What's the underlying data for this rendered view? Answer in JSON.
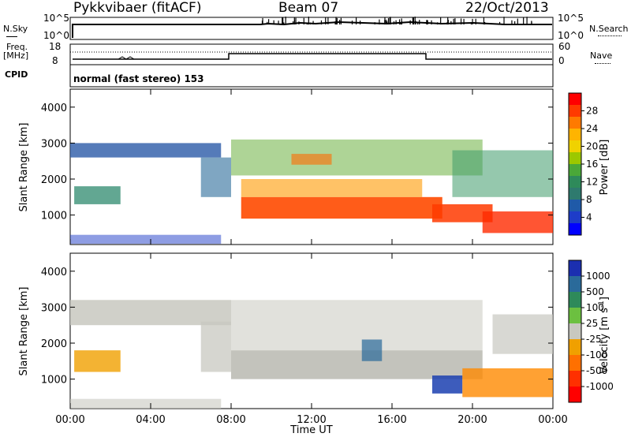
{
  "header": {
    "radar": "Pykkvibaer (fitACF)",
    "beam": "Beam 07",
    "date": "22/Oct/2013"
  },
  "params": {
    "nsky_label": "N.Sky",
    "nsky_ticks": [
      "10^5",
      "10^0"
    ],
    "nsearch_label": "N.Search",
    "nsearch_ticks": [
      "10^5",
      "10^0"
    ],
    "freq_label": "Freq.",
    "freq_unit": "[MHz]",
    "freq_ticks": [
      "18",
      "8"
    ],
    "nave_label": "Nave",
    "nave_ticks": [
      "60",
      "0"
    ],
    "cpid_label": "CPID",
    "cpid_text": "normal (fast stereo) 153"
  },
  "chart_data": [
    {
      "type": "heatmap",
      "name": "power",
      "ylabel": "Slant Range [km]",
      "yticks": [
        "4000",
        "3000",
        "2000",
        "1000"
      ],
      "ylim": [
        180,
        4500
      ],
      "xlim_hours": [
        0,
        24
      ],
      "colorbar_label": "Power [dB]",
      "colorbar_ticks": [
        "28",
        "24",
        "20",
        "16",
        "12",
        "8",
        "4"
      ],
      "colorbar_colors": [
        "#ff0000",
        "#ff3a00",
        "#ff7a00",
        "#ffb400",
        "#f0d200",
        "#9cc800",
        "#4aa838",
        "#2e8a5a",
        "#2e7a6e",
        "#1f5aa8",
        "#1e3cc8",
        "#0000ff"
      ]
    },
    {
      "type": "heatmap",
      "name": "velocity",
      "ylabel": "Slant Range [km]",
      "yticks": [
        "4000",
        "3000",
        "2000",
        "1000"
      ],
      "ylim": [
        180,
        4500
      ],
      "xlim_hours": [
        0,
        24
      ],
      "colorbar_label": "Velocity [m s",
      "colorbar_label_sup": "-1",
      "colorbar_label_end": "]",
      "colorbar_ticks": [
        "1000",
        "500",
        "100",
        "25",
        "-25",
        "-100",
        "-500",
        "-1000"
      ],
      "colorbar_colors": [
        "#1b2fb0",
        "#2a6a9a",
        "#2e8a5a",
        "#6cc040",
        "#c8c8c0",
        "#f0a000",
        "#ff7000",
        "#ff3000",
        "#ff0000"
      ]
    }
  ],
  "xaxis": {
    "ticks": [
      "00:00",
      "04:00",
      "08:00",
      "12:00",
      "16:00",
      "20:00",
      "00:00"
    ],
    "label": "Time UT"
  }
}
